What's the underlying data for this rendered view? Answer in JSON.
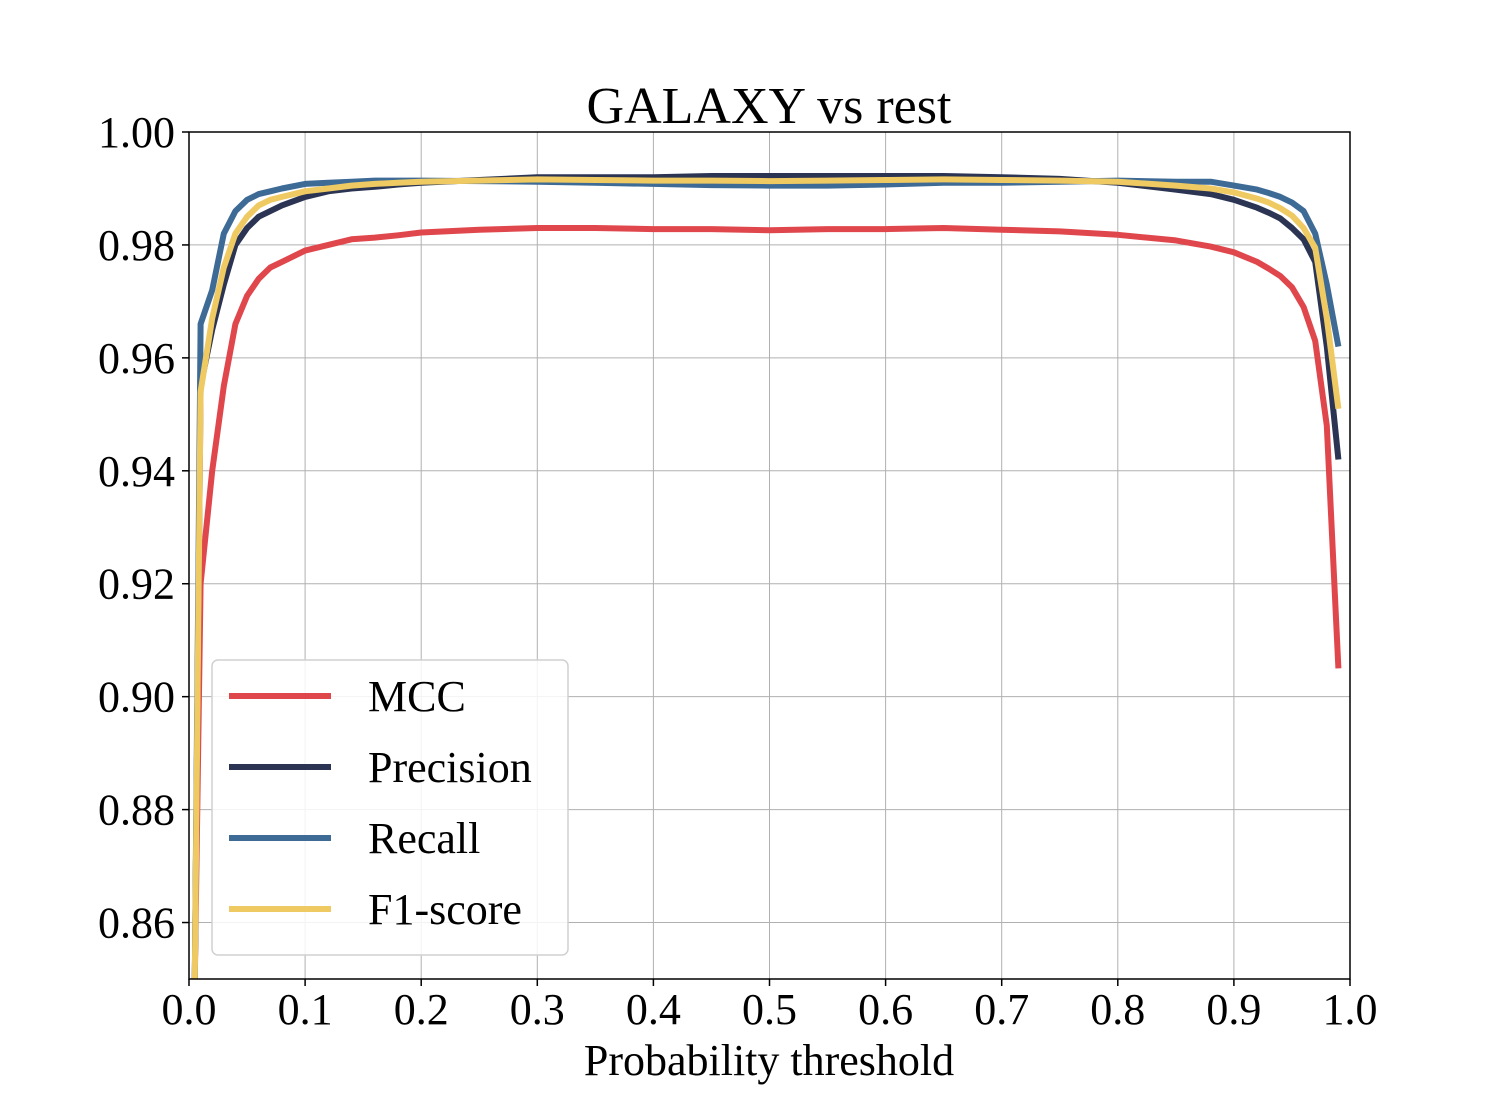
{
  "chart_data": {
    "type": "line",
    "title": "GALAXY vs rest",
    "xlabel": "Probability threshold",
    "ylabel": "",
    "xlim": [
      0.0,
      1.0
    ],
    "ylim": [
      0.85,
      1.0
    ],
    "xticks": [
      "0.0",
      "0.1",
      "0.2",
      "0.3",
      "0.4",
      "0.5",
      "0.6",
      "0.7",
      "0.8",
      "0.9",
      "1.0"
    ],
    "yticks": [
      "0.86",
      "0.88",
      "0.90",
      "0.92",
      "0.94",
      "0.96",
      "0.98",
      "1.00"
    ],
    "grid": true,
    "legend_position": "lower-left",
    "x": [
      0.005,
      0.01,
      0.02,
      0.03,
      0.04,
      0.05,
      0.06,
      0.07,
      0.08,
      0.1,
      0.12,
      0.14,
      0.16,
      0.18,
      0.2,
      0.25,
      0.3,
      0.35,
      0.4,
      0.45,
      0.5,
      0.55,
      0.6,
      0.65,
      0.7,
      0.75,
      0.8,
      0.85,
      0.88,
      0.9,
      0.92,
      0.93,
      0.94,
      0.95,
      0.96,
      0.97,
      0.98,
      0.99
    ],
    "series": [
      {
        "name": "MCC",
        "color": "#e0474c",
        "values": [
          0.85,
          0.92,
          0.94,
          0.955,
          0.966,
          0.971,
          0.974,
          0.976,
          0.977,
          0.979,
          0.98,
          0.981,
          0.9813,
          0.9817,
          0.9822,
          0.9827,
          0.983,
          0.983,
          0.9828,
          0.9828,
          0.9826,
          0.9828,
          0.9828,
          0.983,
          0.9827,
          0.9824,
          0.9818,
          0.9808,
          0.9797,
          0.9787,
          0.977,
          0.9758,
          0.9745,
          0.9725,
          0.969,
          0.963,
          0.948,
          0.905
        ]
      },
      {
        "name": "Precision",
        "color": "#2b3553",
        "values": [
          0.85,
          0.955,
          0.965,
          0.973,
          0.98,
          0.983,
          0.985,
          0.986,
          0.987,
          0.9885,
          0.9895,
          0.99,
          0.9903,
          0.9907,
          0.991,
          0.9915,
          0.992,
          0.992,
          0.992,
          0.9922,
          0.9922,
          0.9922,
          0.9922,
          0.9922,
          0.992,
          0.9917,
          0.991,
          0.9898,
          0.989,
          0.988,
          0.9866,
          0.9857,
          0.9847,
          0.983,
          0.981,
          0.977,
          0.962,
          0.942
        ]
      },
      {
        "name": "Recall",
        "color": "#3e6a96",
        "values": [
          0.85,
          0.966,
          0.972,
          0.982,
          0.986,
          0.988,
          0.989,
          0.9895,
          0.99,
          0.9908,
          0.991,
          0.9912,
          0.9914,
          0.9914,
          0.9914,
          0.9913,
          0.9912,
          0.991,
          0.9908,
          0.9906,
          0.9905,
          0.9905,
          0.9907,
          0.991,
          0.991,
          0.9912,
          0.9914,
          0.9912,
          0.9912,
          0.9905,
          0.9898,
          0.9892,
          0.9885,
          0.9875,
          0.986,
          0.982,
          0.973,
          0.962
        ]
      },
      {
        "name": "F1-score",
        "color": "#efca62",
        "values": [
          0.85,
          0.954,
          0.967,
          0.976,
          0.982,
          0.985,
          0.987,
          0.988,
          0.9885,
          0.9895,
          0.99,
          0.9905,
          0.9908,
          0.991,
          0.9912,
          0.9914,
          0.9916,
          0.9915,
          0.9914,
          0.9914,
          0.9913,
          0.9914,
          0.9915,
          0.9916,
          0.9915,
          0.9914,
          0.9912,
          0.9905,
          0.99,
          0.9893,
          0.9882,
          0.9875,
          0.9865,
          0.9852,
          0.983,
          0.9795,
          0.967,
          0.951
        ]
      }
    ]
  }
}
